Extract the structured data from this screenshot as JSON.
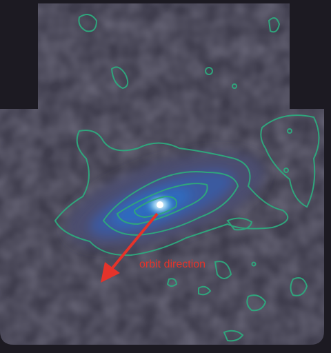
{
  "annotation": "orbit direction"
}
